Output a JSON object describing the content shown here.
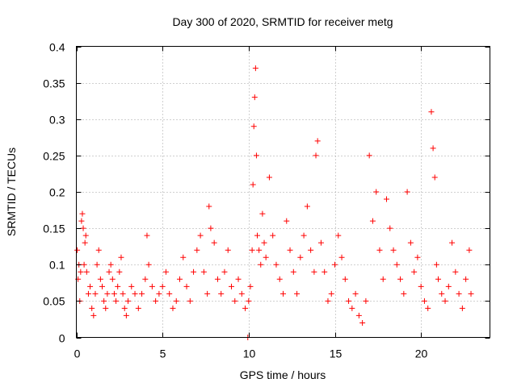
{
  "chart_data": {
    "type": "scatter",
    "title": "Day 300 of 2020, SRMTID for receiver metg",
    "xlabel": "GPS time / hours",
    "ylabel": "SRMTID / TECUs",
    "xlim": [
      0,
      24
    ],
    "ylim": [
      0,
      0.4
    ],
    "xticks": [
      0,
      5,
      10,
      15,
      20
    ],
    "xtick_labels": [
      "0",
      "5",
      "10",
      "15",
      "20"
    ],
    "yticks": [
      0,
      0.05,
      0.1,
      0.15,
      0.2,
      0.25,
      0.3,
      0.35,
      0.4
    ],
    "ytick_labels": [
      "0",
      "0.05",
      "0.1",
      "0.15",
      "0.2",
      "0.25",
      "0.3",
      "0.35",
      "0.4"
    ],
    "grid": true,
    "marker": "+",
    "color": "#ff0000",
    "series": [
      {
        "name": "SRMTID",
        "x": [
          0.05,
          0.1,
          0.15,
          0.2,
          0.25,
          0.3,
          0.35,
          0.4,
          0.45,
          0.5,
          0.55,
          0.6,
          0.7,
          0.8,
          0.9,
          1.0,
          1.1,
          1.2,
          1.3,
          1.4,
          1.5,
          1.6,
          1.7,
          1.8,
          1.9,
          2.0,
          2.1,
          2.2,
          2.3,
          2.4,
          2.5,
          2.6,
          2.7,
          2.8,
          2.9,
          3.0,
          3.2,
          3.4,
          3.6,
          3.8,
          4.0,
          4.1,
          4.2,
          4.4,
          4.6,
          4.8,
          5.0,
          5.2,
          5.4,
          5.6,
          5.8,
          6.0,
          6.2,
          6.4,
          6.6,
          6.8,
          7.0,
          7.2,
          7.4,
          7.6,
          7.7,
          7.8,
          8.0,
          8.2,
          8.4,
          8.6,
          8.8,
          9.0,
          9.2,
          9.4,
          9.6,
          9.8,
          9.95,
          10.0,
          10.1,
          10.2,
          10.25,
          10.3,
          10.35,
          10.4,
          10.45,
          10.5,
          10.6,
          10.7,
          10.8,
          10.9,
          11.0,
          11.2,
          11.4,
          11.6,
          11.8,
          12.0,
          12.2,
          12.4,
          12.6,
          12.8,
          13.0,
          13.2,
          13.4,
          13.6,
          13.8,
          13.9,
          14.0,
          14.2,
          14.4,
          14.6,
          14.8,
          15.0,
          15.2,
          15.4,
          15.6,
          15.8,
          16.0,
          16.2,
          16.4,
          16.6,
          16.8,
          17.0,
          17.2,
          17.4,
          17.6,
          17.8,
          18.0,
          18.2,
          18.4,
          18.6,
          18.8,
          19.0,
          19.2,
          19.4,
          19.6,
          19.8,
          20.0,
          20.2,
          20.4,
          20.6,
          20.7,
          20.8,
          20.9,
          21.0,
          21.2,
          21.4,
          21.6,
          21.8,
          22.0,
          22.2,
          22.4,
          22.6,
          22.8,
          22.9
        ],
        "y": [
          0.12,
          0.08,
          0.1,
          0.05,
          0.09,
          0.16,
          0.17,
          0.15,
          0.1,
          0.13,
          0.14,
          0.09,
          0.06,
          0.07,
          0.04,
          0.03,
          0.06,
          0.1,
          0.12,
          0.08,
          0.07,
          0.05,
          0.04,
          0.06,
          0.09,
          0.1,
          0.08,
          0.06,
          0.05,
          0.07,
          0.09,
          0.11,
          0.06,
          0.04,
          0.03,
          0.05,
          0.07,
          0.06,
          0.04,
          0.06,
          0.08,
          0.14,
          0.1,
          0.07,
          0.05,
          0.06,
          0.07,
          0.09,
          0.06,
          0.04,
          0.05,
          0.08,
          0.11,
          0.07,
          0.05,
          0.09,
          0.12,
          0.14,
          0.09,
          0.06,
          0.18,
          0.15,
          0.13,
          0.08,
          0.06,
          0.09,
          0.12,
          0.07,
          0.05,
          0.08,
          0.06,
          0.04,
          0.0,
          0.05,
          0.07,
          0.12,
          0.21,
          0.29,
          0.33,
          0.37,
          0.25,
          0.14,
          0.12,
          0.1,
          0.17,
          0.13,
          0.11,
          0.22,
          0.14,
          0.1,
          0.08,
          0.06,
          0.16,
          0.12,
          0.09,
          0.06,
          0.11,
          0.14,
          0.18,
          0.12,
          0.09,
          0.25,
          0.27,
          0.13,
          0.09,
          0.05,
          0.06,
          0.1,
          0.14,
          0.11,
          0.08,
          0.05,
          0.04,
          0.06,
          0.03,
          0.02,
          0.05,
          0.25,
          0.16,
          0.2,
          0.12,
          0.08,
          0.19,
          0.15,
          0.12,
          0.1,
          0.08,
          0.06,
          0.2,
          0.13,
          0.09,
          0.11,
          0.07,
          0.05,
          0.04,
          0.31,
          0.26,
          0.22,
          0.1,
          0.08,
          0.06,
          0.05,
          0.07,
          0.13,
          0.09,
          0.06,
          0.04,
          0.08,
          0.12,
          0.06
        ]
      }
    ]
  }
}
